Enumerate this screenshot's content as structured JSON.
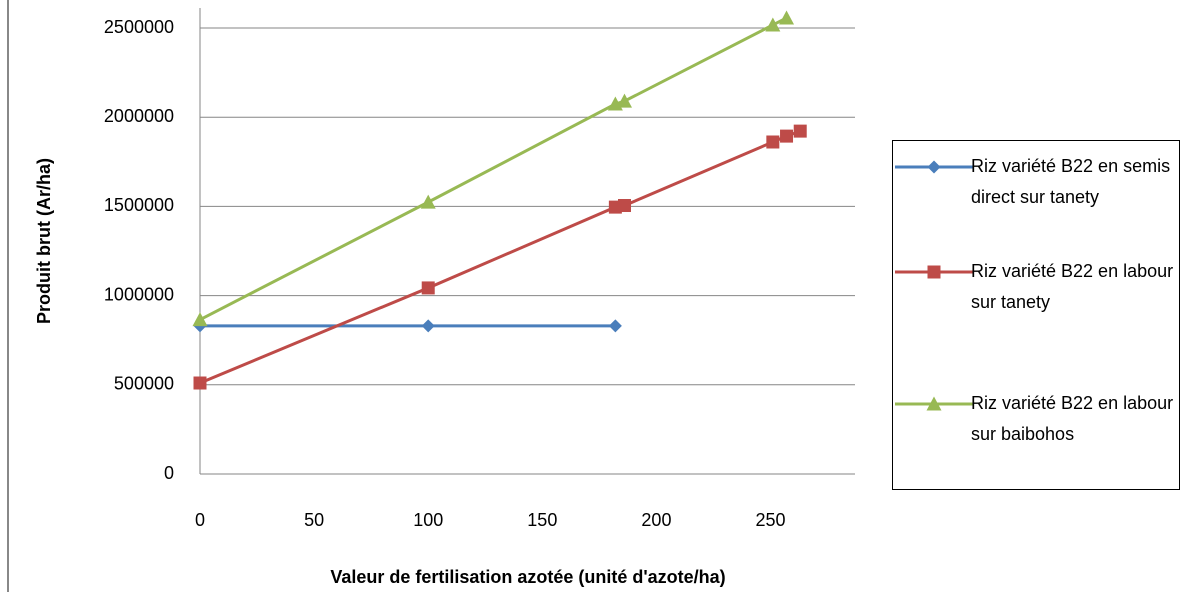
{
  "chart_data": {
    "type": "line",
    "xlabel": "Valeur de fertilisation azotée (unité d'azote/ha)",
    "ylabel": "Produit brut (Ar/ha)",
    "xlim": [
      0,
      287
    ],
    "xticks": [
      0,
      50,
      100,
      150,
      200,
      250
    ],
    "ylim": [
      0,
      2500000
    ],
    "yticks": [
      0,
      500000,
      1000000,
      1500000,
      2000000,
      2500000
    ],
    "grid": true,
    "legend": "right",
    "series": [
      {
        "name": "Riz variété B22 en semis direct sur tanety",
        "color": "#4a7ebb",
        "marker": "diamond",
        "x": [
          0,
          100,
          182
        ],
        "values": [
          830000,
          830000,
          830000
        ]
      },
      {
        "name": "Riz variété B22 en labour sur tanety",
        "color": "#be4b48",
        "marker": "square",
        "x": [
          0,
          100,
          182,
          186,
          251,
          257,
          263
        ],
        "values": [
          510000,
          1043000,
          1496000,
          1505000,
          1861000,
          1894000,
          1922000
        ]
      },
      {
        "name": "Riz variété B22 en labour sur baibohos",
        "color": "#98b954",
        "marker": "triangle",
        "x": [
          0,
          100,
          182,
          186,
          251,
          257
        ],
        "values": [
          865000,
          1524000,
          2074000,
          2090000,
          2517000,
          2556000
        ]
      }
    ]
  }
}
